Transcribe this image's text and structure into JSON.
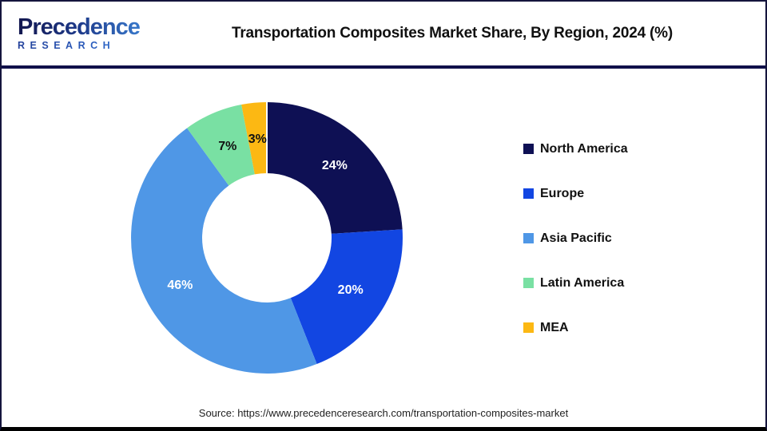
{
  "header": {
    "logo": {
      "wordmark": "Precedence",
      "subtitle": "RESEARCH"
    },
    "title": "Transportation Composites Market Share, By Region, 2024 (%)"
  },
  "chart_data": {
    "type": "pie",
    "subtype": "donut",
    "title": "Transportation Composites Market Share, By Region, 2024 (%)",
    "unit": "%",
    "direction": "clockwise",
    "start_angle_deg": 0,
    "legend_position": "right",
    "categories": [
      "North America",
      "Europe",
      "Asia Pacific",
      "Latin America",
      "MEA"
    ],
    "values": [
      24,
      20,
      46,
      7,
      3
    ],
    "slices": [
      {
        "label": "North America",
        "value": 24,
        "display": "24%",
        "color": "#0e1054",
        "label_color": "#ffffff"
      },
      {
        "label": "Europe",
        "value": 20,
        "display": "20%",
        "color": "#1246e2",
        "label_color": "#ffffff"
      },
      {
        "label": "Asia Pacific",
        "value": 46,
        "display": "46%",
        "color": "#4f97e6",
        "label_color": "#ffffff"
      },
      {
        "label": "Latin America",
        "value": 7,
        "display": "7%",
        "color": "#79e0a3",
        "label_color": "#111111"
      },
      {
        "label": "MEA",
        "value": 3,
        "display": "3%",
        "color": "#fcb813",
        "label_color": "#111111"
      }
    ]
  },
  "footer": {
    "source": "Source: https://www.precedenceresearch.com/transportation-composites-market"
  }
}
